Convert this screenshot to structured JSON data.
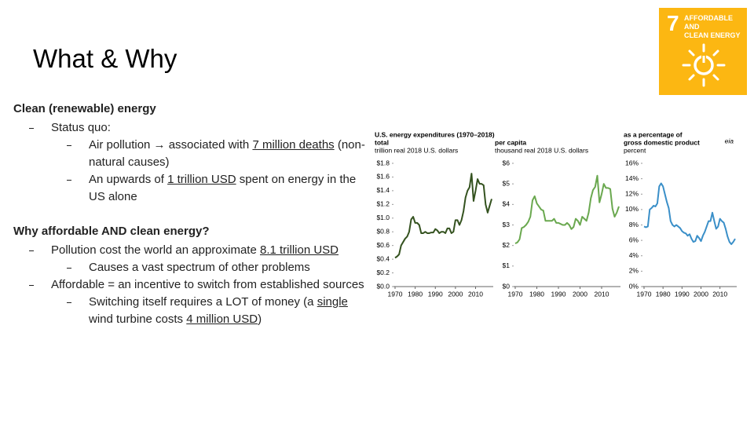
{
  "slide": {
    "title": "What & Why",
    "sdg": {
      "number": "7",
      "label": [
        "AFFORDABLE AND",
        "CLEAN ENERGY"
      ]
    },
    "sections": [
      {
        "heading": "Clean (renewable) energy",
        "items": [
          {
            "text": [
              "Status quo:"
            ],
            "sub": [
              {
                "text": [
                  "Air pollution → associated with ",
                  "7 million deaths",
                  " (non-natural causes)"
                ]
              },
              {
                "text": [
                  "An upwards of ",
                  "1 trillion USD",
                  " spent on energy in the US alone"
                ]
              }
            ]
          }
        ]
      },
      {
        "heading": "Why affordable AND clean energy?",
        "items": [
          {
            "text": [
              "Pollution cost the world an approximate ",
              "8.1 trillion USD"
            ],
            "sub": [
              {
                "text": [
                  "Causes a vast spectrum of other problems"
                ]
              }
            ]
          },
          {
            "text": [
              "Affordable = an incentive to switch from established sources"
            ],
            "sub": [
              {
                "text": [
                  "Switching itself requires a LOT of money (a ",
                  "single",
                  " wind turbine costs ",
                  "4 million USD",
                  ")"
                ]
              }
            ]
          }
        ]
      }
    ]
  },
  "chart_data": [
    {
      "type": "line",
      "title": "U.S. energy expenditures (1970–2018)",
      "subtitle": "total",
      "ylabel": "trillion real 2018 U.S. dollars",
      "x": [
        1970,
        1971,
        1972,
        1973,
        1974,
        1975,
        1976,
        1977,
        1978,
        1979,
        1980,
        1981,
        1982,
        1983,
        1984,
        1985,
        1986,
        1987,
        1988,
        1989,
        1990,
        1991,
        1992,
        1993,
        1994,
        1995,
        1996,
        1997,
        1998,
        1999,
        2000,
        2001,
        2002,
        2003,
        2004,
        2005,
        2006,
        2007,
        2008,
        2009,
        2010,
        2011,
        2012,
        2013,
        2014,
        2015,
        2016,
        2017,
        2018
      ],
      "series": [
        {
          "name": "total",
          "color": "#34521f",
          "values": [
            0.42,
            0.44,
            0.47,
            0.6,
            0.65,
            0.7,
            0.73,
            0.8,
            0.98,
            1.02,
            0.93,
            0.93,
            0.9,
            0.78,
            0.78,
            0.8,
            0.78,
            0.78,
            0.79,
            0.79,
            0.84,
            0.82,
            0.78,
            0.8,
            0.8,
            0.78,
            0.85,
            0.85,
            0.78,
            0.8,
            0.97,
            0.97,
            0.9,
            0.97,
            1.1,
            1.3,
            1.4,
            1.45,
            1.65,
            1.25,
            1.4,
            1.57,
            1.5,
            1.5,
            1.48,
            1.2,
            1.08,
            1.18,
            1.28
          ]
        }
      ],
      "xlim": [
        1970,
        2018
      ],
      "xticks": [
        1970,
        1980,
        1990,
        2000,
        2010
      ],
      "ylim": [
        0,
        1.8
      ],
      "yticks": [
        {
          "value": 0,
          "label": "$0.0"
        },
        {
          "value": 0.2,
          "label": "$0.2"
        },
        {
          "value": 0.4,
          "label": "$0.4"
        },
        {
          "value": 0.6,
          "label": "$0.6"
        },
        {
          "value": 0.8,
          "label": "$0.8"
        },
        {
          "value": 1.0,
          "label": "$1.0"
        },
        {
          "value": 1.2,
          "label": "$1.2"
        },
        {
          "value": 1.4,
          "label": "$1.4"
        },
        {
          "value": 1.6,
          "label": "$1.6"
        },
        {
          "value": 1.8,
          "label": "$1.8"
        }
      ]
    },
    {
      "type": "line",
      "subtitle": "per capita",
      "ylabel": "thousand real 2018 U.S. dollars",
      "x": [
        1970,
        1971,
        1972,
        1973,
        1974,
        1975,
        1976,
        1977,
        1978,
        1979,
        1980,
        1981,
        1982,
        1983,
        1984,
        1985,
        1986,
        1987,
        1988,
        1989,
        1990,
        1991,
        1992,
        1993,
        1994,
        1995,
        1996,
        1997,
        1998,
        1999,
        2000,
        2001,
        2002,
        2003,
        2004,
        2005,
        2006,
        2007,
        2008,
        2009,
        2010,
        2011,
        2012,
        2013,
        2014,
        2015,
        2016,
        2017,
        2018
      ],
      "series": [
        {
          "name": "per capita",
          "color": "#6aa84f",
          "values": [
            2.1,
            2.15,
            2.3,
            2.85,
            2.9,
            3.0,
            3.15,
            3.4,
            4.2,
            4.4,
            4.05,
            3.9,
            3.75,
            3.7,
            3.2,
            3.2,
            3.2,
            3.2,
            3.3,
            3.1,
            3.1,
            3.05,
            3.0,
            3.0,
            3.1,
            3.0,
            2.8,
            2.9,
            3.3,
            3.2,
            3.0,
            3.4,
            3.3,
            3.2,
            3.6,
            4.3,
            4.7,
            4.85,
            5.4,
            4.1,
            4.5,
            5.0,
            4.8,
            4.8,
            4.75,
            3.8,
            3.4,
            3.6,
            3.9
          ]
        }
      ],
      "xlim": [
        1970,
        2018
      ],
      "xticks": [
        1970,
        1980,
        1990,
        2000,
        2010
      ],
      "ylim": [
        0,
        6
      ],
      "yticks": [
        {
          "value": 0,
          "label": "$0"
        },
        {
          "value": 1,
          "label": "$1"
        },
        {
          "value": 2,
          "label": "$2"
        },
        {
          "value": 3,
          "label": "$3"
        },
        {
          "value": 4,
          "label": "$4"
        },
        {
          "value": 5,
          "label": "$5"
        },
        {
          "value": 6,
          "label": "$6"
        }
      ]
    },
    {
      "type": "line",
      "subtitle": [
        "as a percentage of",
        "gross domestic product"
      ],
      "ylabel": "percent",
      "source": "eia",
      "x": [
        1970,
        1971,
        1972,
        1973,
        1974,
        1975,
        1976,
        1977,
        1978,
        1979,
        1980,
        1981,
        1982,
        1983,
        1984,
        1985,
        1986,
        1987,
        1988,
        1989,
        1990,
        1991,
        1992,
        1993,
        1994,
        1995,
        1996,
        1997,
        1998,
        1999,
        2000,
        2001,
        2002,
        2003,
        2004,
        2005,
        2006,
        2007,
        2008,
        2009,
        2010,
        2011,
        2012,
        2013,
        2014,
        2015,
        2016,
        2017,
        2018
      ],
      "series": [
        {
          "name": "percent of GDP",
          "color": "#3a8fc8",
          "values": [
            7.8,
            7.7,
            7.8,
            10.0,
            10.2,
            10.5,
            10.4,
            10.8,
            13.0,
            13.4,
            13.0,
            12.0,
            11.0,
            10.2,
            8.5,
            8.0,
            7.8,
            8.0,
            7.8,
            7.6,
            7.2,
            7.0,
            6.9,
            6.6,
            6.8,
            6.2,
            5.8,
            5.9,
            6.6,
            6.3,
            5.9,
            6.6,
            7.1,
            7.8,
            8.5,
            8.5,
            9.6,
            8.5,
            7.5,
            7.8,
            8.8,
            8.5,
            8.3,
            7.5,
            6.5,
            5.8,
            5.5,
            5.8,
            6.2
          ]
        }
      ],
      "xlim": [
        1970,
        2018
      ],
      "xticks": [
        1970,
        1980,
        1990,
        2000,
        2010
      ],
      "ylim": [
        0,
        16
      ],
      "yticks": [
        {
          "value": 0,
          "label": "0%"
        },
        {
          "value": 2,
          "label": "2%"
        },
        {
          "value": 4,
          "label": "4%"
        },
        {
          "value": 6,
          "label": "6%"
        },
        {
          "value": 8,
          "label": "8%"
        },
        {
          "value": 10,
          "label": "10%"
        },
        {
          "value": 12,
          "label": "12%"
        },
        {
          "value": 14,
          "label": "14%"
        },
        {
          "value": 16,
          "label": "16%"
        }
      ]
    }
  ]
}
